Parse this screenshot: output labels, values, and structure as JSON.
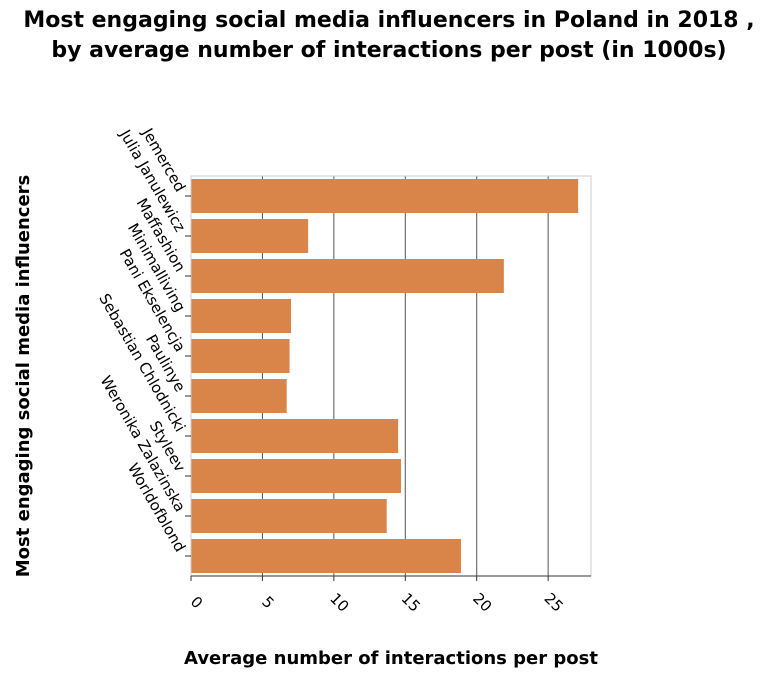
{
  "chart_data": {
    "type": "bar",
    "orientation": "horizontal",
    "title": "Most engaging social media influencers in Poland in 2018 , by average number of interactions per post (in 1000s)",
    "xlabel": "Average number of interactions per post",
    "ylabel": "Most engaging social media influencers",
    "categories": [
      "Jemerced",
      "Julia Janulewicz",
      "Maffashion",
      "Minimalliving",
      "Pani Ekselencja",
      "Paulinye",
      "Sebastian Chlodnicki",
      "Styleev",
      "Weronika Zalazinska",
      "Worldofblond"
    ],
    "values": [
      27.1,
      8.2,
      21.9,
      7.0,
      6.9,
      6.7,
      14.5,
      14.7,
      13.7,
      18.9
    ],
    "xlim": [
      0,
      28
    ],
    "xticks": [
      0,
      5,
      10,
      15,
      20,
      25
    ],
    "grid": "vertical",
    "bar_color": "#d9854a"
  }
}
